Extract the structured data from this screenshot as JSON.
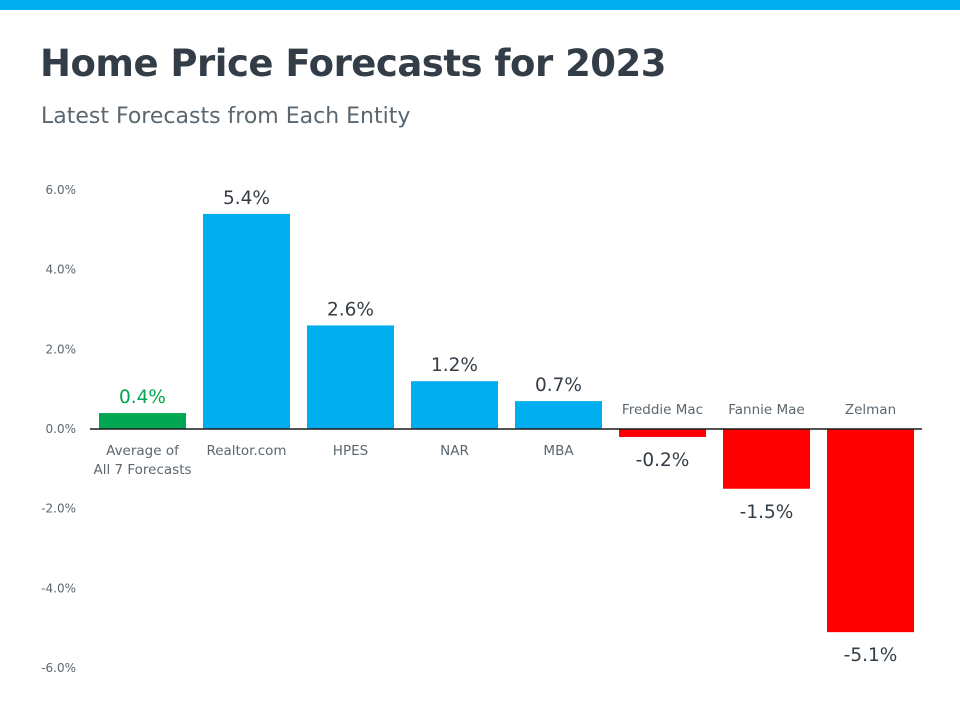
{
  "header": {
    "title": "Home Price Forecasts for 2023",
    "subtitle": "Latest Forecasts from Each Entity"
  },
  "colors": {
    "accent_bar": "#00aeef",
    "average": "#00a651",
    "positive": "#00aeef",
    "negative": "#ff0000",
    "axis_text": "#5b6770",
    "label_text": "#333d47"
  },
  "chart_data": {
    "type": "bar",
    "title": "Home Price Forecasts for 2023",
    "subtitle": "Latest Forecasts from Each Entity",
    "xlabel": "",
    "ylabel": "",
    "ylim": [
      -6,
      6
    ],
    "yticks": [
      6,
      4,
      2,
      0,
      -2,
      -4,
      -6
    ],
    "ytick_labels": [
      "6.0%",
      "4.0%",
      "2.0%",
      "0.0%",
      "-2.0%",
      "-4.0%",
      "-6.0%"
    ],
    "grid": false,
    "legend": "none",
    "categories": [
      [
        "Average of",
        "All 7 Forecasts"
      ],
      [
        "Realtor.com"
      ],
      [
        "HPES"
      ],
      [
        "NAR"
      ],
      [
        "MBA"
      ],
      [
        "Freddie Mac"
      ],
      [
        "Fannie Mae"
      ],
      [
        "Zelman"
      ]
    ],
    "values": [
      0.4,
      5.4,
      2.6,
      1.2,
      0.7,
      -0.2,
      -1.5,
      -5.1
    ],
    "value_labels": [
      "0.4%",
      "5.4%",
      "2.6%",
      "1.2%",
      "0.7%",
      "-0.2%",
      "-1.5%",
      "-5.1%"
    ],
    "bar_color_keys": [
      "average",
      "positive",
      "positive",
      "positive",
      "positive",
      "negative",
      "negative",
      "negative"
    ]
  }
}
